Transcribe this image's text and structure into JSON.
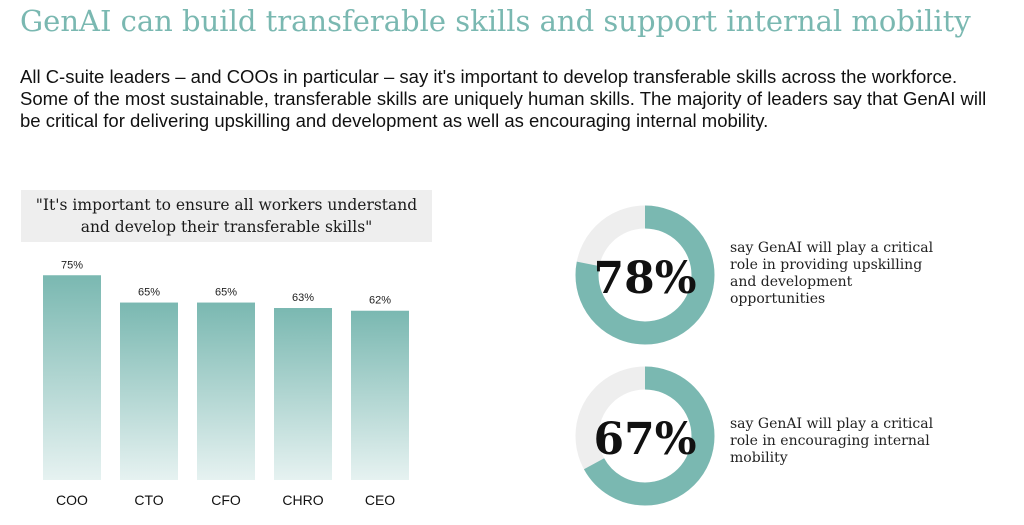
{
  "title": "GenAI can build transferable skills and support internal mobility",
  "intro": "All C-suite leaders – and COOs in particular – say it's important to develop transferable skills across the workforce. Some of the most sustainable, transferable skills are uniquely human skills. The majority of leaders say that GenAI will be critical for delivering upskilling and development as well as encouraging internal mobility.",
  "colors": {
    "accent": "#7ab8b1",
    "donut_track": "#eeeeee",
    "bar_top": "#7ab8b1",
    "bar_bottom": "#e6f2f1"
  },
  "chart_data": [
    {
      "type": "bar",
      "title": "\"It's important to ensure all workers understand and develop their transferable skills\"",
      "categories": [
        "COO",
        "CTO",
        "CFO",
        "CHRO",
        "CEO"
      ],
      "values": [
        75,
        65,
        65,
        63,
        62
      ],
      "value_labels": [
        "75%",
        "65%",
        "65%",
        "63%",
        "62%"
      ],
      "unit": "%",
      "ylim": [
        0,
        100
      ],
      "grid": false,
      "legend": "none"
    },
    {
      "type": "pie",
      "subtype": "donut",
      "value": 78,
      "label": "78%",
      "caption": "say GenAI will play a critical role in providing upskilling and development opportunities"
    },
    {
      "type": "pie",
      "subtype": "donut",
      "value": 67,
      "label": "67%",
      "caption": "say GenAI will play a critical role in encouraging internal mobility"
    }
  ]
}
